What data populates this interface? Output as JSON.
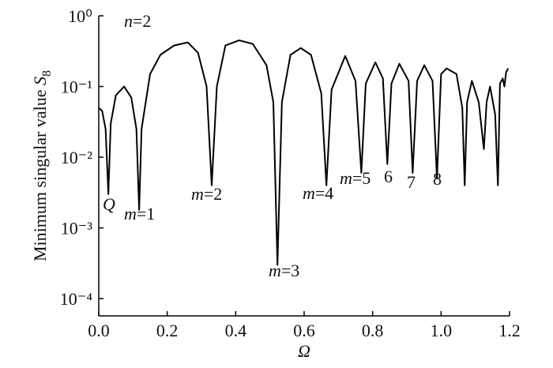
{
  "chart_data": {
    "type": "line",
    "log_y": true,
    "x_label": "Ω",
    "y_label": "Minimum singular value ",
    "y_label_symbol": "S",
    "y_label_subscript": "8",
    "annotations": [
      "n=2",
      "Q",
      "m=1",
      "m=2",
      "m=3",
      "m=4",
      "m=5",
      "6",
      "7",
      "8"
    ],
    "x": [
      0.0,
      0.01,
      0.02,
      0.028,
      0.035,
      0.05,
      0.074,
      0.095,
      0.11,
      0.118,
      0.125,
      0.15,
      0.18,
      0.22,
      0.26,
      0.29,
      0.315,
      0.33,
      0.345,
      0.37,
      0.41,
      0.45,
      0.49,
      0.51,
      0.522,
      0.535,
      0.56,
      0.59,
      0.62,
      0.65,
      0.665,
      0.68,
      0.72,
      0.75,
      0.767,
      0.78,
      0.808,
      0.83,
      0.843,
      0.855,
      0.878,
      0.905,
      0.917,
      0.93,
      0.951,
      0.975,
      0.988,
      1.0,
      1.016,
      1.045,
      1.062,
      1.069,
      1.076,
      1.09,
      1.11,
      1.125,
      1.133,
      1.143,
      1.158,
      1.166,
      1.172,
      1.18,
      1.185,
      1.19,
      1.196
    ],
    "series": [
      {
        "name": "S8",
        "color": "#000000",
        "values": [
          0.05,
          0.045,
          0.025,
          0.003,
          0.03,
          0.075,
          0.1,
          0.07,
          0.025,
          0.0018,
          0.025,
          0.15,
          0.28,
          0.38,
          0.42,
          0.3,
          0.1,
          0.004,
          0.1,
          0.38,
          0.45,
          0.4,
          0.2,
          0.06,
          0.0003,
          0.06,
          0.28,
          0.35,
          0.28,
          0.08,
          0.004,
          0.09,
          0.27,
          0.12,
          0.006,
          0.11,
          0.22,
          0.13,
          0.008,
          0.11,
          0.21,
          0.12,
          0.006,
          0.12,
          0.2,
          0.12,
          0.005,
          0.15,
          0.18,
          0.15,
          0.05,
          0.004,
          0.06,
          0.12,
          0.06,
          0.013,
          0.06,
          0.1,
          0.04,
          0.004,
          0.11,
          0.13,
          0.1,
          0.16,
          0.18
        ]
      }
    ],
    "xlim": [
      0,
      1.2
    ],
    "xticks": [
      {
        "value": 0,
        "label": "0.0"
      },
      0.2,
      0.4,
      0.6,
      0.8,
      {
        "value": 1,
        "label": "1.0"
      },
      1.2
    ],
    "ylim": [
      5.7e-05,
      1
    ],
    "yticks": [
      {
        "value": 1,
        "label": "10⁰"
      },
      {
        "value": 0.1,
        "label": "10⁻¹"
      },
      {
        "value": 0.01,
        "label": "10⁻²"
      },
      {
        "value": 0.001,
        "label": "10⁻³"
      },
      {
        "value": 0.0001,
        "label": "10⁻⁴"
      }
    ]
  }
}
